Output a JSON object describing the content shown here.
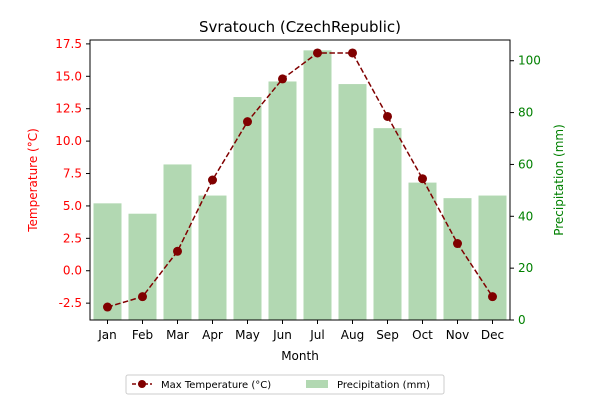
{
  "chart_data": {
    "type": "bar+line",
    "title": "Svratouch (CzechRepublic)",
    "xlabel": "Month",
    "ylabel_left": "Temperature (°C)",
    "ylabel_right": "Precipitation (mm)",
    "categories": [
      "Jan",
      "Feb",
      "Mar",
      "Apr",
      "May",
      "Jun",
      "Jul",
      "Aug",
      "Sep",
      "Oct",
      "Nov",
      "Dec"
    ],
    "series": [
      {
        "name": "Max Temperature (°C)",
        "kind": "line",
        "axis": "left",
        "color": "#800000",
        "values": [
          -2.8,
          -2.0,
          1.5,
          7.0,
          11.5,
          14.8,
          16.8,
          16.8,
          11.9,
          7.1,
          2.1,
          -2.0
        ]
      },
      {
        "name": "Precipitation (mm)",
        "kind": "bar",
        "axis": "right",
        "color": "#b2d8b2",
        "values": [
          45,
          41,
          60,
          48,
          86,
          92,
          104,
          91,
          74,
          53,
          47,
          48
        ]
      }
    ],
    "ylim_left": [
      -3.8,
      17.8
    ],
    "ylim_right": [
      0,
      108
    ],
    "yticks_left": [
      "-2.5",
      "0.0",
      "2.5",
      "5.0",
      "7.5",
      "10.0",
      "12.5",
      "15.0",
      "17.5"
    ],
    "yticks_right": [
      "0",
      "20",
      "40",
      "60",
      "80",
      "100"
    ],
    "left_axis_color": "#ff0000",
    "right_axis_color": "#008000",
    "legend": "bottom-center",
    "grid": false
  }
}
